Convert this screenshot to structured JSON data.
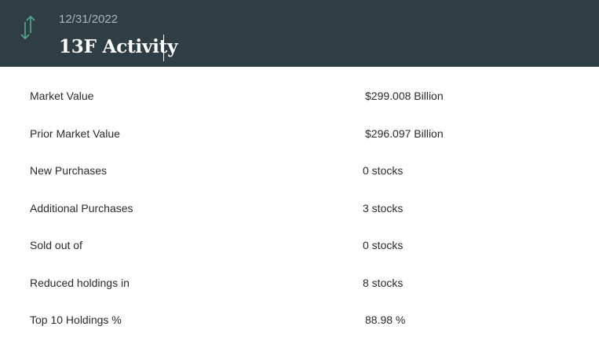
{
  "header": {
    "icon": "up-down-arrows-icon",
    "icon_color": "#5aa98c",
    "date": "12/31/2022",
    "title": "13F Activity"
  },
  "rows": [
    {
      "label": "Market Value",
      "value": "$299.008 Billion"
    },
    {
      "label": "Prior Market Value",
      "value": "$296.097 Billion"
    },
    {
      "label": "New Purchases",
      "value": "0 stocks"
    },
    {
      "label": "Additional Purchases",
      "value": "3 stocks"
    },
    {
      "label": "Sold out of",
      "value": "0 stocks"
    },
    {
      "label": "Reduced holdings in",
      "value": "8 stocks"
    },
    {
      "label": "Top 10 Holdings %",
      "value": "88.98 %"
    }
  ]
}
